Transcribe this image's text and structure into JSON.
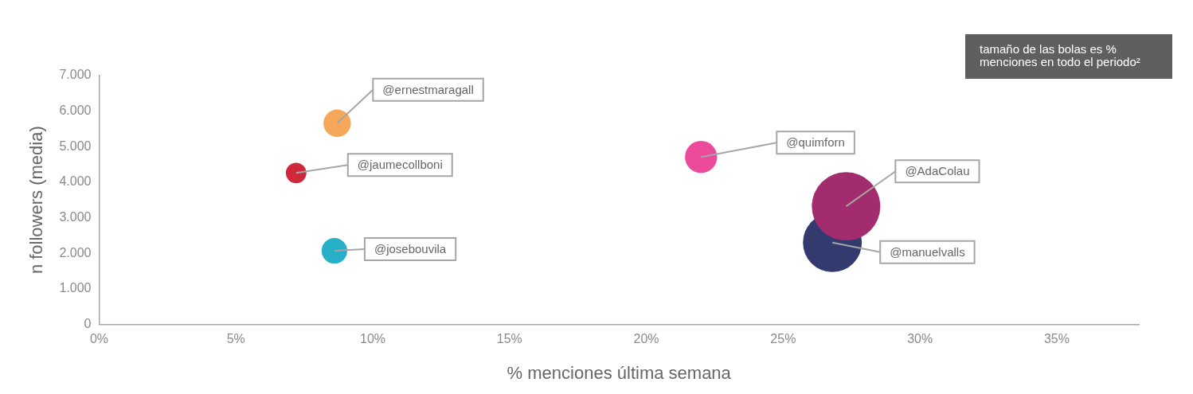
{
  "chart_data": {
    "type": "bubble",
    "xlabel": "% menciones última semana",
    "ylabel": "n followers (media)",
    "annotations": [
      "tamaño de las bolas es % menciones en todo el periodo²"
    ],
    "xlim": [
      0,
      38
    ],
    "xticks": [
      {
        "value": 0,
        "label": "0%"
      },
      {
        "value": 5,
        "label": "5%"
      },
      {
        "value": 10,
        "label": "10%"
      },
      {
        "value": 15,
        "label": "15%"
      },
      {
        "value": 20,
        "label": "20%"
      },
      {
        "value": 25,
        "label": "25%"
      },
      {
        "value": 30,
        "label": "30%"
      },
      {
        "value": 35,
        "label": "35%"
      }
    ],
    "ylim": [
      0,
      7000
    ],
    "yticks": [
      {
        "value": 0,
        "label": "0"
      },
      {
        "value": 1000,
        "label": "1.000"
      },
      {
        "value": 2000,
        "label": "2.000"
      },
      {
        "value": 3000,
        "label": "3.000"
      },
      {
        "value": 4000,
        "label": "4.000"
      },
      {
        "value": 5000,
        "label": "5.000"
      },
      {
        "value": 6000,
        "label": "6.000"
      },
      {
        "value": 7000,
        "label": "7.000"
      }
    ],
    "grid": false,
    "legend": false,
    "series": [
      {
        "name": "@ernestmaragall",
        "color": "#f5a85a",
        "x": [
          8.7
        ],
        "values": [
          5660
        ],
        "sizes": [
          0.16
        ]
      },
      {
        "name": "@jaumecollboni",
        "color": "#d0283a",
        "x": [
          7.2
        ],
        "values": [
          4260
        ],
        "sizes": [
          0.09
        ]
      },
      {
        "name": "@josebouvila",
        "color": "#27afc8",
        "x": [
          8.6
        ],
        "values": [
          2070
        ],
        "sizes": [
          0.14
        ]
      },
      {
        "name": "@quimforn",
        "color": "#ec4a9a",
        "x": [
          22.0
        ],
        "values": [
          4710
        ],
        "sizes": [
          0.22
        ]
      },
      {
        "name": "@AdaColau",
        "color": "#a22c6e",
        "x": [
          27.3
        ],
        "values": [
          3320
        ],
        "sizes": [
          1
        ]
      },
      {
        "name": "@manuelvalls",
        "color": "#333a6e",
        "x": [
          26.8
        ],
        "values": [
          2300
        ],
        "sizes": [
          0.74
        ]
      }
    ]
  }
}
